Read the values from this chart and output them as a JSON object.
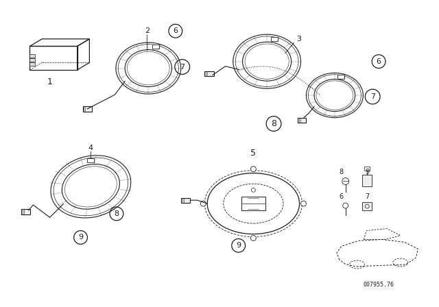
{
  "background_color": "#ffffff",
  "line_color": "#1a1a1a",
  "fig_width": 6.4,
  "fig_height": 4.48,
  "dpi": 100,
  "watermark": "007955.76"
}
